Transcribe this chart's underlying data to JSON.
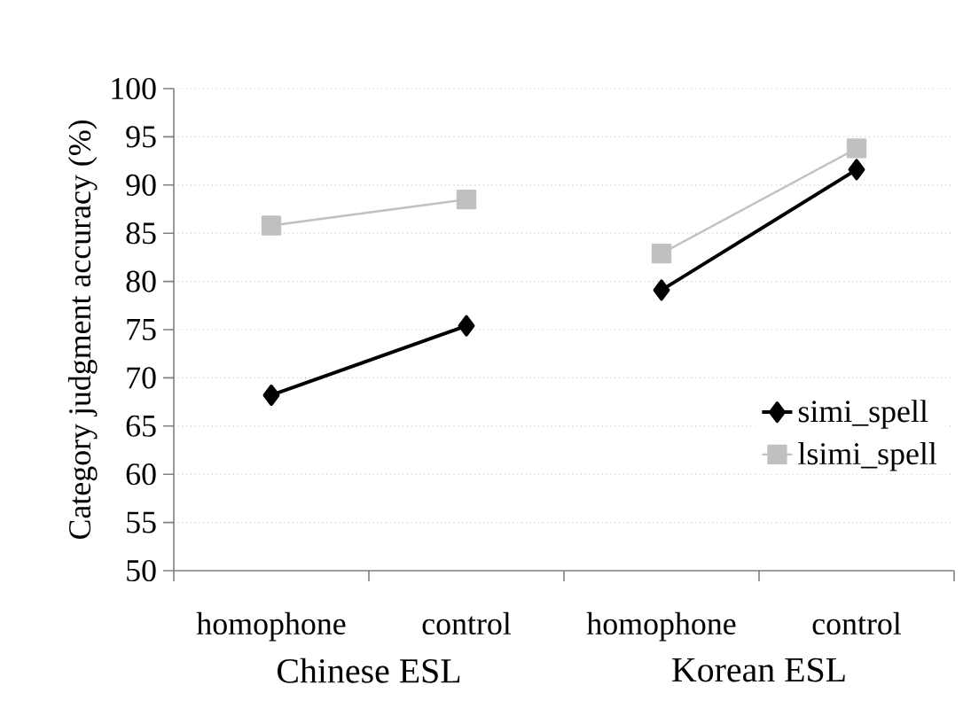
{
  "chart_data": {
    "type": "line",
    "ylabel": "Category judgment accuracy (%)",
    "categories": [
      "homophone",
      "control",
      "homophone",
      "control"
    ],
    "series": [
      {
        "name": "simi_spell",
        "color": "#000000",
        "marker": "diamond",
        "values": [
          68.2,
          75.4,
          79.1,
          91.6
        ]
      },
      {
        "name": "lsimi_spell",
        "color": "#c0c0c0",
        "marker": "square",
        "values": [
          85.8,
          88.5,
          82.9,
          93.8
        ]
      }
    ],
    "annotations": [
      "Chinese ESL",
      "Korean ESL"
    ],
    "ylim": [
      50,
      100
    ],
    "yticks": [
      50,
      55,
      60,
      65,
      70,
      75,
      80,
      85,
      90,
      95,
      100
    ],
    "grid": "y",
    "legend": "bottom right"
  }
}
